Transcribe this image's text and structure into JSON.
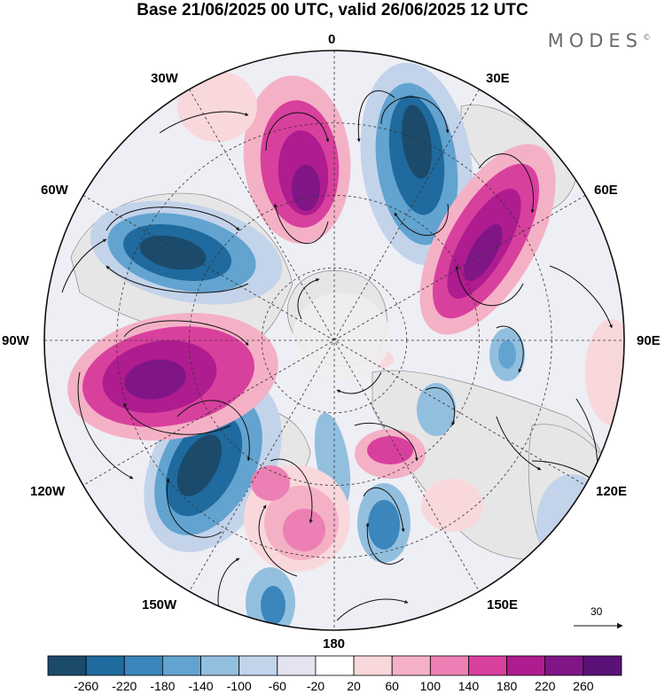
{
  "title": "Base 21/06/2025 00 UTC, valid 26/06/2025 12 UTC",
  "brand": "MODES",
  "brand_mark": "©",
  "longitude_labels": {
    "lon_0": "0",
    "lon_30e": "30E",
    "lon_60e": "60E",
    "lon_90e": "90E",
    "lon_120e": "120E",
    "lon_150e": "150E",
    "lon_180": "180",
    "lon_150w": "150W",
    "lon_120w": "120W",
    "lon_90w": "90W",
    "lon_60w": "60W",
    "lon_30w": "30W"
  },
  "wind_reference": {
    "value": "30"
  },
  "colorbar": {
    "labels": [
      "-260",
      "-220",
      "-180",
      "-140",
      "-100",
      "-60",
      "-20",
      "20",
      "60",
      "100",
      "140",
      "180",
      "220",
      "260"
    ],
    "colors": [
      "#1b4a6b",
      "#1f6a9e",
      "#3a86bd",
      "#62a3d0",
      "#93bfdf",
      "#c3d3ea",
      "#e4e4f0",
      "#ffffff",
      "#f9d8dc",
      "#f4b1c6",
      "#ec7fb3",
      "#d8409d",
      "#ae1c8f",
      "#801686",
      "#5a1278"
    ]
  },
  "map": {
    "projection": "north polar stereographic",
    "colors": {
      "land": "#e9e9e9",
      "neg_strong": "#1b4a6b",
      "neg_mid": "#3a86bd",
      "neg_weak": "#93bfdf",
      "neg_faint": "#c3d3ea",
      "pos_faint": "#f9d8dc",
      "pos_weak": "#f4b1c6",
      "pos_mid": "#d8409d",
      "pos_strong": "#801686"
    }
  }
}
